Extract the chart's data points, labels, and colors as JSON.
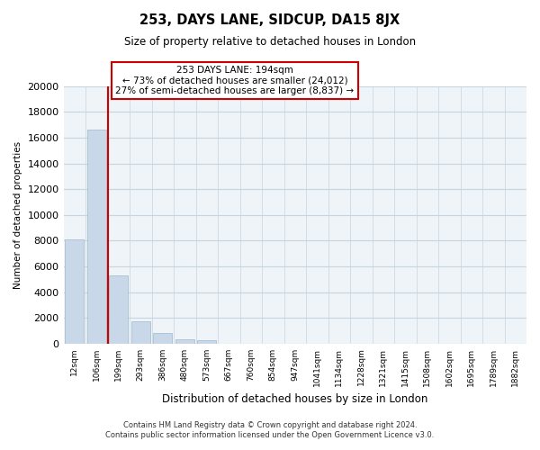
{
  "title": "253, DAYS LANE, SIDCUP, DA15 8JX",
  "subtitle": "Size of property relative to detached houses in London",
  "xlabel": "Distribution of detached houses by size in London",
  "ylabel": "Number of detached properties",
  "bar_labels": [
    "12sqm",
    "106sqm",
    "199sqm",
    "293sqm",
    "386sqm",
    "480sqm",
    "573sqm",
    "667sqm",
    "760sqm",
    "854sqm",
    "947sqm",
    "1041sqm",
    "1134sqm",
    "1228sqm",
    "1321sqm",
    "1415sqm",
    "1508sqm",
    "1602sqm",
    "1695sqm",
    "1789sqm",
    "1882sqm"
  ],
  "bar_values": [
    8100,
    16600,
    5300,
    1750,
    800,
    300,
    250,
    0,
    0,
    0,
    0,
    0,
    0,
    0,
    0,
    0,
    0,
    0,
    0,
    0,
    0
  ],
  "bar_color": "#c8d8e8",
  "bar_edge_color": "#a0b8cc",
  "marker_color": "#cc0000",
  "annotation_line1": "253 DAYS LANE: 194sqm",
  "annotation_line2": "← 73% of detached houses are smaller (24,012)",
  "annotation_line3": "27% of semi-detached houses are larger (8,837) →",
  "ylim": [
    0,
    20000
  ],
  "yticks": [
    0,
    2000,
    4000,
    6000,
    8000,
    10000,
    12000,
    14000,
    16000,
    18000,
    20000
  ],
  "footer_line1": "Contains HM Land Registry data © Crown copyright and database right 2024.",
  "footer_line2": "Contains public sector information licensed under the Open Government Licence v3.0.",
  "background_color": "#ffffff",
  "grid_color": "#c8d4e0",
  "plot_bg_color": "#eef4f8"
}
